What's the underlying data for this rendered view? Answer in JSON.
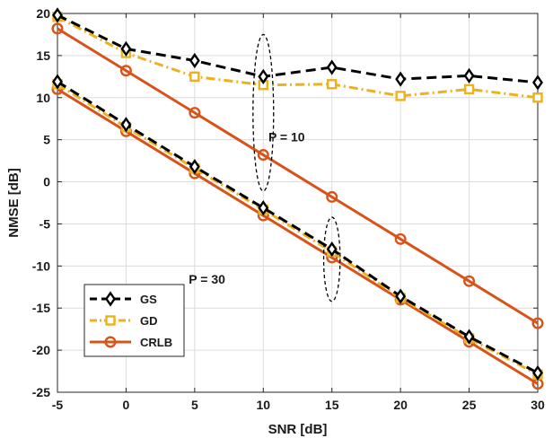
{
  "chart_data": {
    "type": "line",
    "title": "",
    "xlabel": "SNR [dB]",
    "ylabel": "NMSE [dB]",
    "xlim": [
      -5,
      30
    ],
    "ylim": [
      -25,
      20
    ],
    "xticks": [
      -5,
      0,
      5,
      10,
      15,
      20,
      25,
      30
    ],
    "yticks": [
      -25,
      -20,
      -15,
      -10,
      -5,
      0,
      5,
      10,
      15,
      20
    ],
    "grid": true,
    "legend_position": "bottom-left",
    "x": [
      -5,
      0,
      5,
      10,
      15,
      20,
      25,
      30
    ],
    "series": [
      {
        "name": "GS",
        "group": "P = 10",
        "legend": true,
        "color": "#000000",
        "dash": "dashed",
        "marker": "diamond",
        "values": [
          19.8,
          15.8,
          14.4,
          12.5,
          13.6,
          12.2,
          12.6,
          11.8
        ]
      },
      {
        "name": "GD",
        "group": "P = 10",
        "legend": true,
        "color": "#EDB120",
        "dash": "dashdot",
        "marker": "square",
        "values": [
          19.6,
          15.3,
          12.5,
          11.5,
          11.6,
          10.2,
          11.0,
          10.0
        ]
      },
      {
        "name": "CRLB",
        "group": "P = 10",
        "legend": true,
        "color": "#D95319",
        "dash": "solid",
        "marker": "circle",
        "values": [
          18.2,
          13.2,
          8.2,
          3.2,
          -1.8,
          -6.8,
          -11.8,
          -16.8
        ]
      },
      {
        "name": "GS",
        "group": "P = 30",
        "legend": false,
        "color": "#000000",
        "dash": "dashed",
        "marker": "diamond",
        "values": [
          11.9,
          6.8,
          1.8,
          -3.1,
          -8.0,
          -13.6,
          -18.4,
          -22.7
        ]
      },
      {
        "name": "GD",
        "group": "P = 30",
        "legend": false,
        "color": "#EDB120",
        "dash": "dashdot",
        "marker": "square",
        "values": [
          11.6,
          6.5,
          1.6,
          -3.3,
          -8.3,
          -13.8,
          -18.6,
          -22.9
        ]
      },
      {
        "name": "CRLB",
        "group": "P = 30",
        "legend": false,
        "color": "#D95319",
        "dash": "solid",
        "marker": "circle",
        "values": [
          11.0,
          6.0,
          1.0,
          -4.0,
          -9.0,
          -14.0,
          -19.0,
          -24.0
        ]
      }
    ],
    "annotations": [
      {
        "text": "P = 10",
        "anchor_x": 11.7,
        "anchor_y": 4.8
      },
      {
        "text": "P = 30",
        "anchor_x": 5.9,
        "anchor_y": -12.1
      }
    ],
    "ellipses": [
      {
        "center_x": 10,
        "center_y": 8.2,
        "radius_x": 0.75,
        "radius_y": 9.3
      },
      {
        "center_x": 15,
        "center_y": -9.2,
        "radius_x": 0.6,
        "radius_y": 5.0
      }
    ]
  }
}
